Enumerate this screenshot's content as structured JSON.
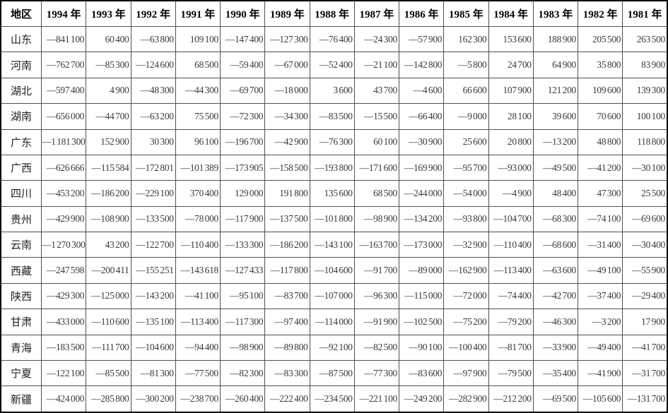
{
  "table": {
    "columns": [
      "地区",
      "1994 年",
      "1993 年",
      "1992 年",
      "1991 年",
      "1990 年",
      "1989 年",
      "1988 年",
      "1987 年",
      "1986 年",
      "1985 年",
      "1984 年",
      "1983 年",
      "1982 年",
      "1981 年"
    ],
    "rows": [
      {
        "region": "山东",
        "values": [
          "—841 100",
          "60 400",
          "—63 800",
          "109 100",
          "—147 400",
          "—127 300",
          "—76 400",
          "—24 300",
          "—57 900",
          "162 300",
          "153 600",
          "188 900",
          "205 500",
          "263 500"
        ]
      },
      {
        "region": "河南",
        "values": [
          "—762 700",
          "—85 300",
          "—124 600",
          "68 500",
          "—59 400",
          "—67 000",
          "—52 400",
          "—21 100",
          "—142 800",
          "—5 800",
          "24 700",
          "64 900",
          "35 800",
          "83 900"
        ]
      },
      {
        "region": "湖北",
        "values": [
          "—597 400",
          "4 900",
          "—48 300",
          "—44 300",
          "—69 700",
          "—18 000",
          "3 600",
          "43 700",
          "—4 600",
          "66 600",
          "107 900",
          "121 200",
          "109 600",
          "139 300"
        ]
      },
      {
        "region": "湖南",
        "values": [
          "—656 000",
          "—44 700",
          "—63 200",
          "75 500",
          "—72 300",
          "—34 300",
          "—83 500",
          "—15 500",
          "—66 400",
          "—9 000",
          "28 100",
          "39 600",
          "70 600",
          "100 100"
        ]
      },
      {
        "region": "广东",
        "values": [
          "—1 181 300",
          "152 900",
          "30 300",
          "96 100",
          "—196 700",
          "—42 900",
          "—76 300",
          "60 100",
          "—30 900",
          "25 600",
          "20 800",
          "—13 200",
          "48 800",
          "118 800"
        ]
      },
      {
        "region": "广西",
        "values": [
          "—626 666",
          "—115 584",
          "—172 801",
          "—101 389",
          "—173 905",
          "—158 500",
          "—193 800",
          "—171 600",
          "—169 900",
          "—95 700",
          "—93 000",
          "—49 500",
          "—41 200",
          "—30 100"
        ]
      },
      {
        "region": "四川",
        "values": [
          "—453 200",
          "—186 200",
          "—229 100",
          "370 400",
          "129 000",
          "191 800",
          "135 600",
          "68 500",
          "—244 000",
          "—54 000",
          "—4 900",
          "48 400",
          "47 300",
          "25 500"
        ]
      },
      {
        "region": "贵州",
        "values": [
          "—429 900",
          "—108 900",
          "—133 500",
          "—78 000",
          "—117 900",
          "—137 500",
          "—101 800",
          "—98 900",
          "—134 200",
          "—93 800",
          "—104 700",
          "—68 300",
          "—74 100",
          "—69 600"
        ]
      },
      {
        "region": "云南",
        "values": [
          "—1 270 300",
          "43 200",
          "—122 700",
          "—110 400",
          "—133 300",
          "—186 200",
          "—143 100",
          "—163 700",
          "—173 000",
          "—32 900",
          "—110 400",
          "—68 600",
          "—31 400",
          "—30 400"
        ]
      },
      {
        "region": "西藏",
        "values": [
          "—247 598",
          "—200 411",
          "—155 251",
          "—143 618",
          "—127 433",
          "—117 800",
          "—104 600",
          "—91 700",
          "—89 000",
          "—162 900",
          "—113 400",
          "—63 600",
          "—49 100",
          "—55 900"
        ]
      },
      {
        "region": "陕西",
        "values": [
          "—429 300",
          "—125 000",
          "—143 200",
          "—41 100",
          "—95 100",
          "—83 700",
          "—107 000",
          "—96 300",
          "—115 000",
          "—72 000",
          "—74 400",
          "—42 700",
          "—37 400",
          "—29 400"
        ]
      },
      {
        "region": "甘肃",
        "values": [
          "—433 000",
          "—110 600",
          "—135 100",
          "—113 400",
          "—117 300",
          "—97 400",
          "—114 000",
          "—91 900",
          "—102 500",
          "—75 200",
          "—79 200",
          "—46 300",
          "—3 200",
          "17 900"
        ]
      },
      {
        "region": "青海",
        "values": [
          "—183 500",
          "—111 700",
          "—104 600",
          "—94 400",
          "—98 900",
          "—89 800",
          "—92 100",
          "—82 500",
          "—90 100",
          "—100 400",
          "—81 700",
          "—33 900",
          "—49 400",
          "—41 700"
        ]
      },
      {
        "region": "宁夏",
        "values": [
          "—122 100",
          "—85 500",
          "—81 300",
          "—77 500",
          "—82 300",
          "—83 300",
          "—87 500",
          "—77 300",
          "—83 600",
          "—97 900",
          "—79 500",
          "—35 400",
          "—41 900",
          "—31 700"
        ]
      },
      {
        "region": "新疆",
        "values": [
          "—424 000",
          "—285 800",
          "—300 200",
          "—238 700",
          "—260 400",
          "—222 400",
          "—234 500",
          "—221 100",
          "—249 200",
          "—282 900",
          "—212 200",
          "—69 500",
          "—105 600",
          "—131 700"
        ]
      }
    ]
  },
  "colors": {
    "border_outer": "#000000",
    "border_inner": "#4f4f4f",
    "header_text": "#000000",
    "value_text": "#3a3a3a"
  }
}
